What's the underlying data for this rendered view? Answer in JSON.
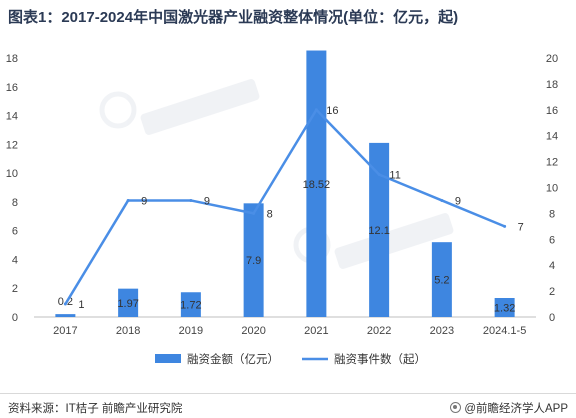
{
  "title": "图表1：2017-2024年中国激光器产业融资整体情况(单位：亿元，起)",
  "footer": {
    "source": "资料来源：IT桔子 前瞻产业研究院",
    "brand": "@前瞻经济学人APP"
  },
  "colors": {
    "bar": "#3e86e0",
    "line": "#4a8ee6"
  },
  "chart_data": {
    "type": "bar",
    "categories": [
      "2017",
      "2018",
      "2019",
      "2020",
      "2021",
      "2022",
      "2023",
      "2024.1-5"
    ],
    "series": [
      {
        "name": "融资金额（亿元）",
        "type": "bar",
        "axis": "left",
        "values": [
          0.2,
          1.97,
          1.72,
          7.9,
          18.52,
          12.1,
          5.2,
          1.32
        ],
        "labels": [
          "0.2",
          "1.97",
          "1.72",
          "7.9",
          "18.52",
          "12.1",
          "5.2",
          "1.32"
        ]
      },
      {
        "name": "融资事件数（起）",
        "type": "line",
        "axis": "right",
        "values": [
          1,
          9,
          9,
          8,
          16,
          11,
          9,
          7
        ],
        "labels": [
          "1",
          "9",
          "9",
          "8",
          "16",
          "11",
          "9",
          "7"
        ]
      }
    ],
    "y_left": {
      "min": 0,
      "max": 18,
      "ticks": [
        0,
        2,
        4,
        6,
        8,
        10,
        12,
        14,
        16,
        18
      ]
    },
    "y_right": {
      "min": 0,
      "max": 20,
      "ticks": [
        0,
        2,
        4,
        6,
        8,
        10,
        12,
        14,
        16,
        18,
        20
      ]
    },
    "grid": false,
    "legend": "bottom"
  }
}
